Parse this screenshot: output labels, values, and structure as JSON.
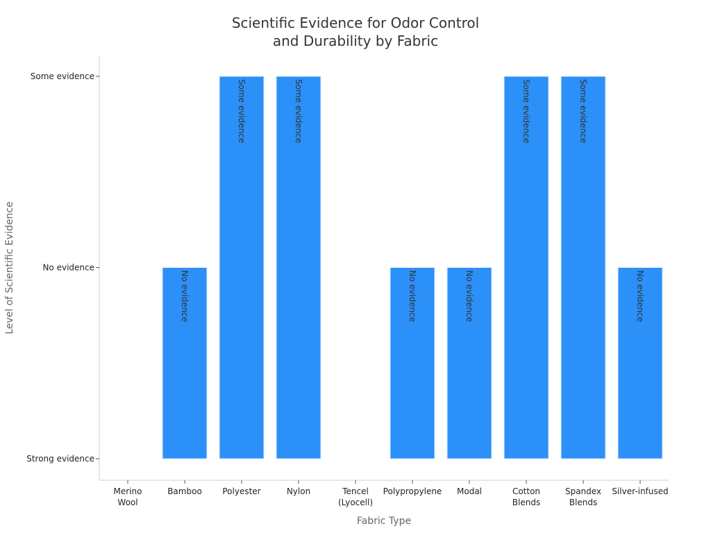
{
  "chart_data": {
    "type": "bar",
    "title_lines": [
      "Scientific Evidence for Odor Control",
      "and Durability by Fabric"
    ],
    "xlabel": "Fabric Type",
    "ylabel": "Level of Scientific Evidence",
    "y_levels": [
      "Strong evidence",
      "No evidence",
      "Some evidence"
    ],
    "categories": [
      [
        "Merino",
        "Wool"
      ],
      [
        "Bamboo"
      ],
      [
        "Polyester"
      ],
      [
        "Nylon"
      ],
      [
        "Tencel",
        "(Lyocell)"
      ],
      [
        "Polypropylene"
      ],
      [
        "Modal"
      ],
      [
        "Cotton",
        "Blends"
      ],
      [
        "Spandex",
        "Blends"
      ],
      [
        "Silver-infused"
      ]
    ],
    "values": [
      "Strong evidence",
      "No evidence",
      "Some evidence",
      "Some evidence",
      "Strong evidence",
      "No evidence",
      "No evidence",
      "Some evidence",
      "Some evidence",
      "No evidence"
    ],
    "data_labels": [
      "",
      "No evidence",
      "Some evidence",
      "Some evidence",
      "",
      "No evidence",
      "No evidence",
      "Some evidence",
      "Some evidence",
      "No evidence"
    ],
    "bar_color": "#2b90f7",
    "grid": false,
    "legend": "none"
  }
}
